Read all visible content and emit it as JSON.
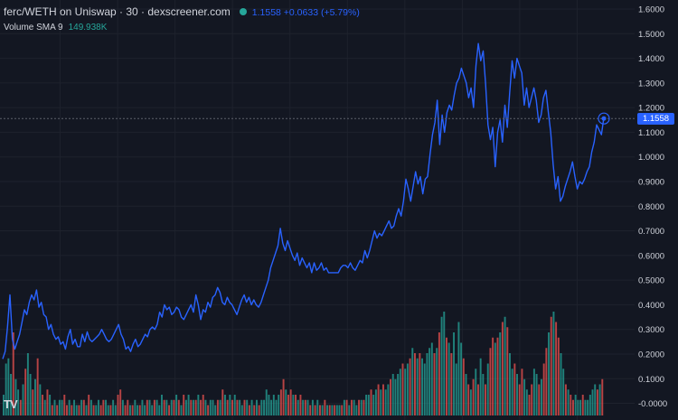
{
  "header": {
    "title": "ferc/WETH on Uniswap · 30 · dexscreener.com",
    "status_dot_color": "#26a69a",
    "price_change_text": "1.1558 +0.0633 (+5.79%)",
    "price_change_color": "#2962ff"
  },
  "volume_legend": {
    "label": "Volume SMA 9",
    "value": "149.938K",
    "value_color": "#26a69a"
  },
  "colors": {
    "background": "#131722",
    "grid": "#1e222d",
    "line": "#2962ff",
    "volume_up": "#26a69a",
    "volume_down": "#ef5350",
    "crosshair": "#5d606b"
  },
  "price_scale": {
    "last_value_label": "1.1558"
  },
  "logo": {
    "text": "TV",
    "icon": "tradingview-logo-icon"
  },
  "chart_data": [
    {
      "type": "line",
      "name": "price",
      "ylim": [
        -0.02,
        1.6
      ],
      "yticks": [
        "-0.0000",
        "0.1000",
        "0.2000",
        "0.3000",
        "0.4000",
        "0.5000",
        "0.6000",
        "0.7000",
        "0.8000",
        "0.9000",
        "1.0000",
        "1.1000",
        "1.2000",
        "1.3000",
        "1.4000",
        "1.5000",
        "1.6000"
      ],
      "grid": true,
      "last_value": 1.1558,
      "values": [
        0.18,
        0.21,
        0.31,
        0.44,
        0.26,
        0.22,
        0.25,
        0.28,
        0.33,
        0.38,
        0.36,
        0.41,
        0.44,
        0.42,
        0.46,
        0.39,
        0.41,
        0.36,
        0.35,
        0.3,
        0.32,
        0.28,
        0.26,
        0.27,
        0.24,
        0.25,
        0.22,
        0.27,
        0.3,
        0.24,
        0.26,
        0.23,
        0.23,
        0.28,
        0.25,
        0.29,
        0.26,
        0.25,
        0.26,
        0.27,
        0.28,
        0.3,
        0.28,
        0.26,
        0.25,
        0.26,
        0.28,
        0.3,
        0.32,
        0.28,
        0.26,
        0.22,
        0.23,
        0.21,
        0.24,
        0.26,
        0.23,
        0.24,
        0.26,
        0.28,
        0.27,
        0.3,
        0.31,
        0.3,
        0.32,
        0.37,
        0.35,
        0.4,
        0.38,
        0.39,
        0.36,
        0.37,
        0.39,
        0.38,
        0.35,
        0.34,
        0.36,
        0.38,
        0.4,
        0.37,
        0.44,
        0.4,
        0.34,
        0.38,
        0.37,
        0.41,
        0.39,
        0.43,
        0.44,
        0.47,
        0.45,
        0.41,
        0.4,
        0.43,
        0.41,
        0.4,
        0.38,
        0.36,
        0.39,
        0.42,
        0.44,
        0.41,
        0.43,
        0.4,
        0.42,
        0.4,
        0.39,
        0.41,
        0.44,
        0.47,
        0.5,
        0.55,
        0.58,
        0.61,
        0.64,
        0.71,
        0.65,
        0.62,
        0.66,
        0.63,
        0.6,
        0.58,
        0.61,
        0.56,
        0.59,
        0.57,
        0.55,
        0.57,
        0.53,
        0.57,
        0.54,
        0.55,
        0.57,
        0.54,
        0.55,
        0.53,
        0.53,
        0.53,
        0.53,
        0.53,
        0.55,
        0.56,
        0.56,
        0.55,
        0.57,
        0.55,
        0.54,
        0.56,
        0.58,
        0.57,
        0.62,
        0.59,
        0.62,
        0.66,
        0.7,
        0.67,
        0.69,
        0.68,
        0.7,
        0.72,
        0.74,
        0.71,
        0.72,
        0.76,
        0.79,
        0.76,
        0.82,
        0.91,
        0.87,
        0.82,
        0.88,
        0.94,
        0.89,
        0.92,
        0.85,
        0.91,
        0.92,
        1.01,
        1.09,
        1.14,
        1.23,
        1.05,
        1.17,
        1.1,
        1.18,
        1.21,
        1.19,
        1.25,
        1.3,
        1.32,
        1.36,
        1.33,
        1.3,
        1.24,
        1.28,
        1.2,
        1.37,
        1.46,
        1.39,
        1.43,
        1.3,
        1.13,
        1.07,
        1.12,
        0.96,
        1.1,
        1.15,
        1.06,
        1.21,
        1.12,
        1.26,
        1.39,
        1.32,
        1.4,
        1.37,
        1.34,
        1.21,
        1.28,
        1.2,
        1.24,
        1.28,
        1.23,
        1.14,
        1.17,
        1.24,
        1.27,
        1.18,
        1.1,
        0.97,
        0.87,
        0.92,
        0.82,
        0.84,
        0.88,
        0.91,
        0.94,
        0.98,
        0.92,
        0.87,
        0.9,
        0.89,
        0.91,
        0.94,
        0.96,
        1.02,
        1.06,
        1.13,
        1.11,
        1.09,
        1.16
      ]
    },
    {
      "type": "bar",
      "name": "volume",
      "colors": [
        "#26a69a",
        "#ef5350"
      ],
      "values": [
        0.4,
        1.0,
        1.1,
        0.8,
        1.6,
        0.7,
        0.5,
        0.3,
        0.6,
        0.9,
        1.2,
        0.8,
        0.5,
        0.7,
        1.1,
        0.6,
        0.4,
        0.3,
        0.5,
        0.4,
        0.2,
        0.3,
        0.2,
        0.3,
        0.3,
        0.4,
        0.2,
        0.3,
        0.2,
        0.3,
        0.2,
        0.2,
        0.3,
        0.3,
        0.2,
        0.4,
        0.3,
        0.2,
        0.2,
        0.3,
        0.2,
        0.3,
        0.3,
        0.2,
        0.2,
        0.3,
        0.2,
        0.4,
        0.5,
        0.3,
        0.2,
        0.3,
        0.2,
        0.2,
        0.3,
        0.2,
        0.2,
        0.3,
        0.2,
        0.3,
        0.3,
        0.2,
        0.3,
        0.3,
        0.2,
        0.4,
        0.3,
        0.3,
        0.2,
        0.3,
        0.3,
        0.4,
        0.3,
        0.2,
        0.4,
        0.3,
        0.4,
        0.3,
        0.3,
        0.3,
        0.4,
        0.3,
        0.4,
        0.3,
        0.2,
        0.3,
        0.3,
        0.2,
        0.3,
        0.3,
        0.5,
        0.4,
        0.3,
        0.4,
        0.3,
        0.4,
        0.3,
        0.3,
        0.2,
        0.3,
        0.3,
        0.2,
        0.3,
        0.2,
        0.3,
        0.2,
        0.3,
        0.3,
        0.5,
        0.4,
        0.3,
        0.4,
        0.3,
        0.4,
        0.5,
        0.7,
        0.5,
        0.4,
        0.5,
        0.4,
        0.4,
        0.3,
        0.4,
        0.3,
        0.3,
        0.3,
        0.2,
        0.3,
        0.2,
        0.3,
        0.2,
        0.2,
        0.3,
        0.2,
        0.2,
        0.2,
        0.2,
        0.2,
        0.2,
        0.2,
        0.3,
        0.3,
        0.2,
        0.3,
        0.3,
        0.2,
        0.3,
        0.3,
        0.3,
        0.4,
        0.4,
        0.5,
        0.4,
        0.5,
        0.6,
        0.5,
        0.6,
        0.5,
        0.6,
        0.7,
        0.8,
        0.7,
        0.8,
        0.9,
        1.0,
        0.9,
        1.0,
        1.1,
        1.3,
        1.2,
        1.1,
        1.2,
        1.1,
        1.0,
        1.2,
        1.3,
        1.4,
        1.2,
        1.3,
        1.6,
        1.9,
        2.0,
        1.5,
        1.4,
        1.2,
        1.6,
        1.0,
        1.8,
        1.4,
        1.1,
        0.8,
        0.6,
        0.5,
        0.7,
        0.9,
        0.6,
        1.1,
        0.8,
        0.6,
        1.0,
        1.3,
        1.5,
        1.4,
        1.5,
        1.6,
        1.8,
        1.9,
        1.7,
        1.2,
        0.9,
        1.0,
        0.8,
        0.6,
        0.9,
        0.7,
        0.5,
        0.4,
        0.6,
        0.9,
        0.8,
        0.6,
        0.7,
        1.0,
        1.3,
        1.6,
        1.9,
        2.0,
        1.8,
        1.5,
        1.2,
        0.9,
        0.6,
        0.5,
        0.4,
        0.3,
        0.4,
        0.3,
        0.3,
        0.4,
        0.3,
        0.3,
        0.4,
        0.5,
        0.6,
        0.5,
        0.6,
        0.7
      ],
      "directions": [
        1,
        1,
        1,
        1,
        -1,
        1,
        1,
        -1,
        1,
        -1,
        1,
        1,
        -1,
        1,
        -1,
        1,
        -1,
        1,
        -1,
        1,
        -1,
        1,
        -1,
        1,
        1,
        -1,
        -1,
        1,
        -1,
        1,
        1,
        -1,
        1,
        -1,
        1,
        -1,
        1,
        -1,
        1,
        1,
        -1,
        -1,
        1,
        1,
        -1,
        1,
        1,
        -1,
        -1,
        1,
        -1,
        -1,
        1,
        -1,
        1,
        1,
        -1,
        1,
        1,
        -1,
        1,
        1,
        -1,
        1,
        1,
        1,
        -1,
        1,
        -1,
        1,
        -1,
        1,
        -1,
        1,
        -1,
        1,
        1,
        -1,
        1,
        -1,
        1,
        -1,
        -1,
        1,
        -1,
        1,
        1,
        1,
        -1,
        1,
        -1,
        1,
        -1,
        1,
        -1,
        1,
        -1,
        1,
        1,
        -1,
        1,
        -1,
        1,
        -1,
        1,
        -1,
        1,
        1,
        1,
        1,
        1,
        1,
        1,
        1,
        -1,
        -1,
        1,
        -1,
        -1,
        1,
        -1,
        1,
        -1,
        1,
        -1,
        1,
        -1,
        1,
        -1,
        1,
        -1,
        1,
        -1,
        1,
        -1,
        1,
        -1,
        1,
        1,
        -1,
        1,
        -1,
        1,
        -1,
        1,
        1,
        -1,
        1,
        -1,
        1,
        1,
        -1,
        1,
        1,
        -1,
        1,
        -1,
        1,
        1,
        -1,
        1,
        1,
        1,
        1,
        -1,
        1,
        1,
        -1,
        1,
        -1,
        1,
        -1,
        1,
        1,
        1,
        1,
        1,
        -1,
        1,
        -1,
        1,
        1,
        -1,
        1,
        -1,
        1,
        1,
        1,
        1,
        -1,
        1,
        -1,
        1,
        -1,
        1,
        -1,
        1,
        1,
        -1,
        1,
        -1,
        -1,
        1,
        -1,
        1,
        -1,
        1,
        -1,
        1,
        1,
        -1,
        1,
        -1,
        -1,
        1,
        1,
        -1,
        -1,
        1,
        1,
        -1,
        1,
        -1,
        -1,
        1,
        -1,
        1,
        -1,
        -1,
        1,
        1,
        -1,
        1,
        -1,
        -1,
        1,
        1,
        1,
        -1,
        1,
        1,
        1,
        1,
        1,
        -1,
        1,
        -1,
        1,
        1,
        1
      ],
      "sma_visible": true
    }
  ]
}
